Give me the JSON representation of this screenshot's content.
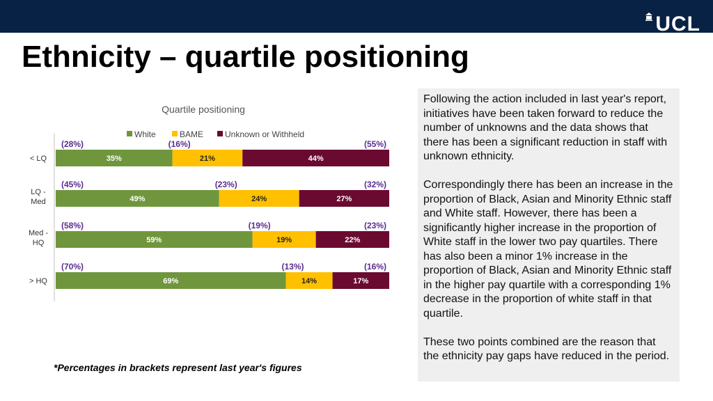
{
  "header": {
    "logo_text": "UCL",
    "title": "Ethnicity – quartile positioning"
  },
  "colors": {
    "header_bg": "#082245",
    "white_series": "#70963d",
    "bame_series": "#ffc000",
    "unknown_series": "#6b0a31",
    "bracket_label": "#5a2d91"
  },
  "chart_data": {
    "type": "bar",
    "orientation": "horizontal-stacked-100",
    "title": "Quartile positioning",
    "legend_position": "top",
    "categories": [
      "< LQ",
      "LQ - Med",
      "Med - HQ",
      "> HQ"
    ],
    "series": [
      {
        "name": "White",
        "values": [
          35,
          49,
          59,
          69
        ],
        "previous": [
          "(28%)",
          "(45%)",
          "(58%)",
          "(70%)"
        ]
      },
      {
        "name": "BAME",
        "values": [
          21,
          24,
          19,
          14
        ],
        "previous": [
          "(16%)",
          "(23%)",
          "(19%)",
          "(13%)"
        ]
      },
      {
        "name": "Unknown or Withheld",
        "values": [
          44,
          27,
          22,
          17
        ],
        "previous": [
          "(55%)",
          "(32%)",
          "(23%)",
          "(16%)"
        ]
      }
    ],
    "xlim": [
      0,
      100
    ]
  },
  "footnote": "*Percentages in brackets represent last year's figures",
  "textbox": {
    "paragraphs": [
      "Following the action included in last year's report, initiatives have been taken forward to reduce the number of unknowns and the data shows that there has been a significant reduction in staff with unknown ethnicity.",
      "Correspondingly there has been an increase in the proportion of Black, Asian and Minority Ethnic staff and White staff. However, there has been a significantly higher increase in the proportion of White staff in the lower two pay quartiles. There has also been a minor 1% increase in the proportion of Black, Asian and Minority Ethnic staff in the higher pay quartile with a corresponding 1% decrease in the proportion of white staff in that quartile.",
      "These two points combined are the reason that the ethnicity pay gaps have reduced in the period."
    ]
  }
}
